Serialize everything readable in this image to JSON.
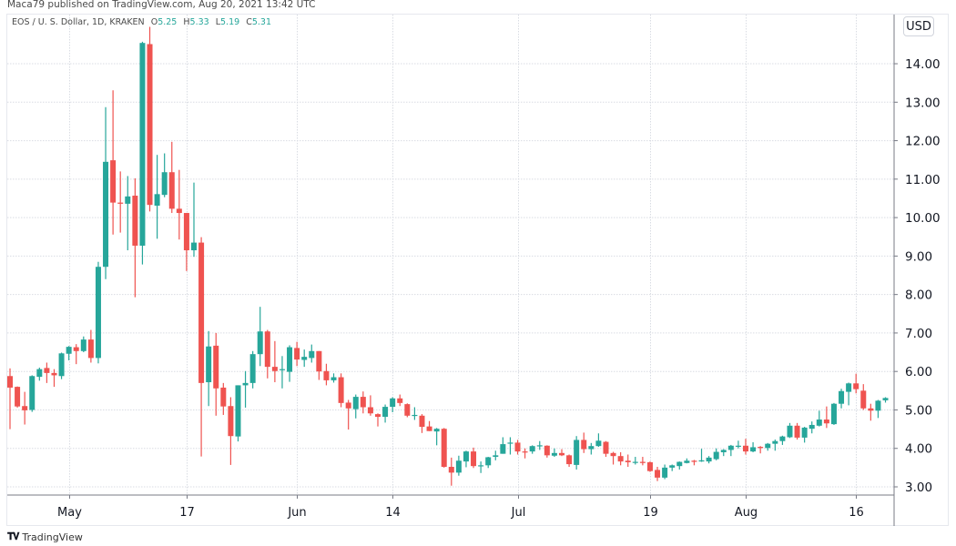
{
  "header": {
    "publisher_line": "Maca79 published on TradingView.com, Aug 20, 2021 13:42 UTC"
  },
  "legend": {
    "symbol": "EOS / U. S. Dollar, 1D, KRAKEN",
    "o_label": "O",
    "o_value": "5.25",
    "h_label": "H",
    "h_value": "5.33",
    "l_label": "L",
    "l_value": "5.19",
    "c_label": "C",
    "c_value": "5.31"
  },
  "currency_button": "USD",
  "footer": {
    "logo_text": "TradingView"
  },
  "colors": {
    "up": "#26a69a",
    "down": "#ef5350",
    "grid": "#d9dce3",
    "axis": "#787b86",
    "text": "#131722"
  },
  "chart_data": {
    "type": "candlestick",
    "title": "EOS / U. S. Dollar, 1D, KRAKEN",
    "ylim": [
      2.8,
      15.25
    ],
    "grid": true,
    "y_axis_position": "right",
    "y_ticks": [
      "3.00",
      "4.00",
      "5.00",
      "6.00",
      "7.00",
      "8.00",
      "9.00",
      "10.00",
      "11.00",
      "12.00",
      "13.00",
      "14.00"
    ],
    "x_ticks": [
      {
        "label": "May",
        "date": "2021-05-01"
      },
      {
        "label": "17",
        "date": "2021-05-17"
      },
      {
        "label": "Jun",
        "date": "2021-06-01"
      },
      {
        "label": "14",
        "date": "2021-06-14"
      },
      {
        "label": "Jul",
        "date": "2021-07-01"
      },
      {
        "label": "19",
        "date": "2021-07-19"
      },
      {
        "label": "Aug",
        "date": "2021-08-01"
      },
      {
        "label": "16",
        "date": "2021-08-16"
      }
    ],
    "dates": [
      "2021-04-23",
      "2021-04-24",
      "2021-04-25",
      "2021-04-26",
      "2021-04-27",
      "2021-04-28",
      "2021-04-29",
      "2021-04-30",
      "2021-05-01",
      "2021-05-02",
      "2021-05-03",
      "2021-05-04",
      "2021-05-05",
      "2021-05-06",
      "2021-05-07",
      "2021-05-08",
      "2021-05-09",
      "2021-05-10",
      "2021-05-11",
      "2021-05-12",
      "2021-05-13",
      "2021-05-14",
      "2021-05-15",
      "2021-05-16",
      "2021-05-17",
      "2021-05-18",
      "2021-05-19",
      "2021-05-20",
      "2021-05-21",
      "2021-05-22",
      "2021-05-23",
      "2021-05-24",
      "2021-05-25",
      "2021-05-26",
      "2021-05-27",
      "2021-05-28",
      "2021-05-29",
      "2021-05-30",
      "2021-05-31",
      "2021-06-01",
      "2021-06-02",
      "2021-06-03",
      "2021-06-04",
      "2021-06-05",
      "2021-06-06",
      "2021-06-07",
      "2021-06-08",
      "2021-06-09",
      "2021-06-10",
      "2021-06-11",
      "2021-06-12",
      "2021-06-13",
      "2021-06-14",
      "2021-06-15",
      "2021-06-16",
      "2021-06-17",
      "2021-06-18",
      "2021-06-19",
      "2021-06-20",
      "2021-06-21",
      "2021-06-22",
      "2021-06-23",
      "2021-06-24",
      "2021-06-25",
      "2021-06-26",
      "2021-06-27",
      "2021-06-28",
      "2021-06-29",
      "2021-06-30",
      "2021-07-01",
      "2021-07-02",
      "2021-07-03",
      "2021-07-04",
      "2021-07-05",
      "2021-07-06",
      "2021-07-07",
      "2021-07-08",
      "2021-07-09",
      "2021-07-10",
      "2021-07-11",
      "2021-07-12",
      "2021-07-13",
      "2021-07-14",
      "2021-07-15",
      "2021-07-16",
      "2021-07-17",
      "2021-07-18",
      "2021-07-19",
      "2021-07-20",
      "2021-07-21",
      "2021-07-22",
      "2021-07-23",
      "2021-07-24",
      "2021-07-25",
      "2021-07-26",
      "2021-07-27",
      "2021-07-28",
      "2021-07-29",
      "2021-07-30",
      "2021-07-31",
      "2021-08-01",
      "2021-08-02",
      "2021-08-03",
      "2021-08-04",
      "2021-08-05",
      "2021-08-06",
      "2021-08-07",
      "2021-08-08",
      "2021-08-09",
      "2021-08-10",
      "2021-08-11",
      "2021-08-12",
      "2021-08-13",
      "2021-08-14",
      "2021-08-15",
      "2021-08-16",
      "2021-08-17",
      "2021-08-18",
      "2021-08-19",
      "2021-08-20"
    ],
    "ohlc": [
      [
        5.88,
        6.08,
        4.5,
        5.58
      ],
      [
        5.6,
        5.61,
        5.06,
        5.09
      ],
      [
        5.1,
        5.47,
        4.62,
        4.99
      ],
      [
        5.0,
        5.9,
        4.95,
        5.88
      ],
      [
        5.86,
        6.1,
        5.76,
        6.06
      ],
      [
        6.09,
        6.23,
        5.7,
        5.96
      ],
      [
        5.96,
        6.06,
        5.6,
        5.9
      ],
      [
        5.88,
        6.49,
        5.8,
        6.47
      ],
      [
        6.46,
        6.66,
        6.29,
        6.64
      ],
      [
        6.63,
        6.71,
        6.19,
        6.53
      ],
      [
        6.53,
        6.91,
        6.5,
        6.83
      ],
      [
        6.83,
        7.08,
        6.23,
        6.35
      ],
      [
        6.35,
        8.85,
        6.21,
        8.72
      ],
      [
        8.72,
        12.87,
        8.4,
        11.45
      ],
      [
        11.49,
        13.31,
        9.56,
        10.39
      ],
      [
        10.39,
        11.2,
        9.61,
        10.36
      ],
      [
        10.36,
        11.08,
        9.15,
        10.55
      ],
      [
        10.57,
        11.02,
        7.93,
        9.27
      ],
      [
        9.27,
        14.57,
        8.78,
        14.54
      ],
      [
        14.51,
        14.96,
        10.16,
        10.33
      ],
      [
        10.31,
        11.63,
        9.45,
        10.61
      ],
      [
        10.59,
        11.67,
        10.53,
        11.18
      ],
      [
        11.18,
        11.97,
        10.12,
        10.23
      ],
      [
        10.23,
        11.24,
        9.43,
        10.12
      ],
      [
        10.12,
        10.12,
        8.61,
        9.15
      ],
      [
        9.15,
        10.91,
        8.98,
        9.35
      ],
      [
        9.35,
        9.49,
        3.79,
        5.7
      ],
      [
        5.72,
        7.05,
        5.1,
        6.65
      ],
      [
        6.67,
        7.0,
        4.85,
        5.56
      ],
      [
        5.58,
        5.7,
        4.87,
        5.09
      ],
      [
        5.1,
        5.33,
        3.57,
        4.32
      ],
      [
        4.31,
        5.64,
        4.18,
        5.64
      ],
      [
        5.64,
        6.01,
        5.06,
        5.7
      ],
      [
        5.7,
        6.53,
        5.56,
        6.45
      ],
      [
        6.45,
        7.68,
        6.14,
        7.04
      ],
      [
        7.04,
        7.08,
        5.82,
        6.12
      ],
      [
        6.12,
        6.79,
        5.72,
        6.01
      ],
      [
        6.04,
        6.4,
        5.56,
        6.06
      ],
      [
        5.99,
        6.68,
        5.73,
        6.63
      ],
      [
        6.61,
        6.77,
        6.14,
        6.31
      ],
      [
        6.3,
        6.57,
        6.12,
        6.38
      ],
      [
        6.35,
        6.7,
        6.23,
        6.53
      ],
      [
        6.53,
        6.53,
        5.78,
        6.0
      ],
      [
        6.01,
        6.2,
        5.64,
        5.77
      ],
      [
        5.77,
        5.95,
        5.71,
        5.85
      ],
      [
        5.85,
        5.95,
        5.07,
        5.18
      ],
      [
        5.19,
        5.26,
        4.49,
        5.04
      ],
      [
        5.02,
        5.4,
        4.78,
        5.34
      ],
      [
        5.34,
        5.48,
        4.91,
        5.07
      ],
      [
        5.07,
        5.38,
        4.85,
        4.91
      ],
      [
        4.89,
        4.91,
        4.57,
        4.82
      ],
      [
        4.82,
        5.14,
        4.67,
        5.08
      ],
      [
        5.08,
        5.33,
        4.94,
        5.3
      ],
      [
        5.3,
        5.4,
        5.1,
        5.18
      ],
      [
        5.15,
        5.17,
        4.81,
        4.85
      ],
      [
        4.85,
        5.07,
        4.74,
        4.87
      ],
      [
        4.85,
        4.89,
        4.4,
        4.56
      ],
      [
        4.57,
        4.71,
        4.45,
        4.45
      ],
      [
        4.44,
        4.53,
        4.08,
        4.51
      ],
      [
        4.51,
        4.53,
        3.5,
        3.52
      ],
      [
        3.52,
        3.76,
        3.03,
        3.37
      ],
      [
        3.37,
        3.81,
        3.29,
        3.68
      ],
      [
        3.66,
        3.94,
        3.51,
        3.92
      ],
      [
        3.92,
        4.02,
        3.49,
        3.54
      ],
      [
        3.54,
        3.66,
        3.36,
        3.56
      ],
      [
        3.56,
        3.78,
        3.49,
        3.77
      ],
      [
        3.78,
        3.94,
        3.69,
        3.82
      ],
      [
        3.86,
        4.29,
        3.86,
        4.11
      ],
      [
        4.13,
        4.29,
        3.84,
        4.15
      ],
      [
        4.15,
        4.22,
        3.84,
        3.92
      ],
      [
        3.92,
        4.0,
        3.74,
        3.91
      ],
      [
        3.92,
        4.08,
        3.86,
        4.06
      ],
      [
        4.06,
        4.19,
        3.96,
        4.08
      ],
      [
        4.07,
        4.08,
        3.76,
        3.82
      ],
      [
        3.81,
        4.0,
        3.78,
        3.88
      ],
      [
        3.88,
        3.98,
        3.8,
        3.82
      ],
      [
        3.82,
        3.84,
        3.52,
        3.59
      ],
      [
        3.57,
        4.32,
        3.45,
        4.22
      ],
      [
        4.22,
        4.41,
        3.88,
        3.98
      ],
      [
        3.98,
        4.14,
        3.84,
        4.06
      ],
      [
        4.06,
        4.39,
        4.04,
        4.2
      ],
      [
        4.17,
        4.19,
        3.78,
        3.86
      ],
      [
        3.88,
        3.91,
        3.58,
        3.8
      ],
      [
        3.8,
        3.9,
        3.56,
        3.66
      ],
      [
        3.68,
        3.84,
        3.52,
        3.64
      ],
      [
        3.64,
        3.78,
        3.58,
        3.65
      ],
      [
        3.65,
        3.78,
        3.56,
        3.62
      ],
      [
        3.64,
        3.66,
        3.39,
        3.41
      ],
      [
        3.44,
        3.52,
        3.15,
        3.24
      ],
      [
        3.24,
        3.58,
        3.2,
        3.5
      ],
      [
        3.5,
        3.58,
        3.41,
        3.56
      ],
      [
        3.54,
        3.66,
        3.45,
        3.65
      ],
      [
        3.62,
        3.74,
        3.61,
        3.68
      ],
      [
        3.68,
        3.7,
        3.56,
        3.65
      ],
      [
        3.66,
        3.99,
        3.65,
        3.69
      ],
      [
        3.66,
        3.8,
        3.61,
        3.76
      ],
      [
        3.72,
        4.0,
        3.69,
        3.91
      ],
      [
        3.9,
        3.98,
        3.8,
        3.96
      ],
      [
        3.96,
        4.09,
        3.8,
        4.07
      ],
      [
        4.06,
        4.2,
        4.0,
        4.07
      ],
      [
        4.07,
        4.25,
        3.84,
        3.92
      ],
      [
        3.92,
        4.16,
        3.9,
        4.03
      ],
      [
        4.04,
        4.06,
        3.87,
        4.01
      ],
      [
        4.01,
        4.14,
        3.94,
        4.12
      ],
      [
        4.12,
        4.23,
        3.94,
        4.19
      ],
      [
        4.19,
        4.33,
        4.09,
        4.31
      ],
      [
        4.29,
        4.66,
        4.27,
        4.59
      ],
      [
        4.59,
        4.66,
        4.23,
        4.28
      ],
      [
        4.28,
        4.56,
        4.15,
        4.54
      ],
      [
        4.51,
        4.7,
        4.39,
        4.61
      ],
      [
        4.59,
        4.98,
        4.57,
        4.75
      ],
      [
        4.75,
        5.09,
        4.53,
        4.65
      ],
      [
        4.63,
        5.18,
        4.61,
        5.16
      ],
      [
        5.16,
        5.55,
        5.04,
        5.49
      ],
      [
        5.47,
        5.71,
        5.12,
        5.69
      ],
      [
        5.69,
        5.94,
        5.43,
        5.54
      ],
      [
        5.5,
        5.67,
        5.0,
        5.04
      ],
      [
        5.04,
        5.16,
        4.72,
        4.98
      ],
      [
        4.98,
        5.26,
        4.79,
        5.24
      ],
      [
        5.25,
        5.33,
        5.19,
        5.31
      ]
    ]
  }
}
